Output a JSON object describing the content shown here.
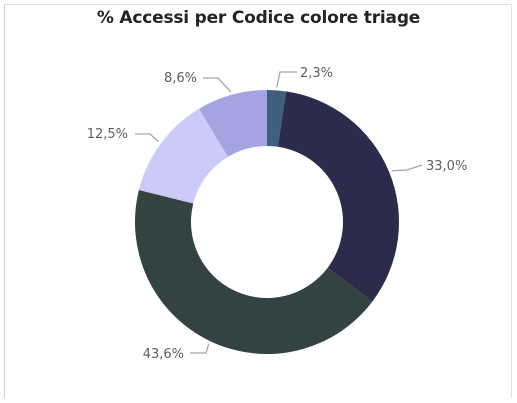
{
  "chart_data": {
    "type": "pie",
    "variant": "donut",
    "title": "% Accessi per Codice colore triage",
    "values": [
      2.3,
      33.0,
      43.6,
      12.5,
      8.6
    ],
    "labels": [
      "2,3%",
      "33,0%",
      "43,6%",
      "12,5%",
      "8,6%"
    ],
    "colors": [
      "#3f5f7f",
      "#2c2b4c",
      "#324341",
      "#cbcaf8",
      "#a6a3e3"
    ],
    "label_positions": [
      "outside-top-right",
      "outside-right",
      "outside-bottom-left",
      "outside-left",
      "outside-top-left"
    ]
  }
}
